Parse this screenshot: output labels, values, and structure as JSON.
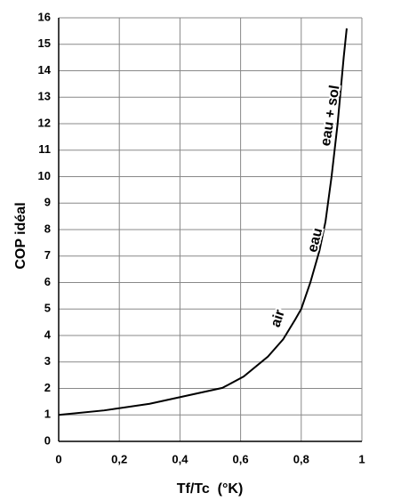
{
  "chart_data": {
    "type": "line",
    "xlabel": "Tf/Tc  (°K)",
    "ylabel": "COP idéal",
    "x": [
      0,
      0.15,
      0.3,
      0.54,
      0.61,
      0.69,
      0.74,
      0.78,
      0.8,
      0.83,
      0.86,
      0.88,
      0.9,
      0.92,
      0.94,
      0.95
    ],
    "series": [
      {
        "name": "COP",
        "color": "#000000",
        "values": [
          1,
          1.17,
          1.42,
          2.02,
          2.45,
          3.2,
          3.85,
          4.6,
          5,
          6,
          7.2,
          8.3,
          10,
          12,
          14.5,
          15.6
        ]
      }
    ],
    "annotations": [
      "air",
      "eau",
      "eau + sol"
    ],
    "xlim": [
      0,
      1
    ],
    "ylim": [
      0,
      16
    ],
    "xticks": [
      0,
      {
        "value": 0.2,
        "label": "0,2"
      },
      {
        "value": 0.4,
        "label": "0,4"
      },
      {
        "value": 0.6,
        "label": "0,6"
      },
      {
        "value": 0.8,
        "label": "0,8"
      },
      1
    ],
    "yticks": [
      0,
      1,
      2,
      3,
      4,
      5,
      6,
      7,
      8,
      9,
      10,
      11,
      12,
      13,
      14,
      15,
      16
    ],
    "grid": true
  }
}
